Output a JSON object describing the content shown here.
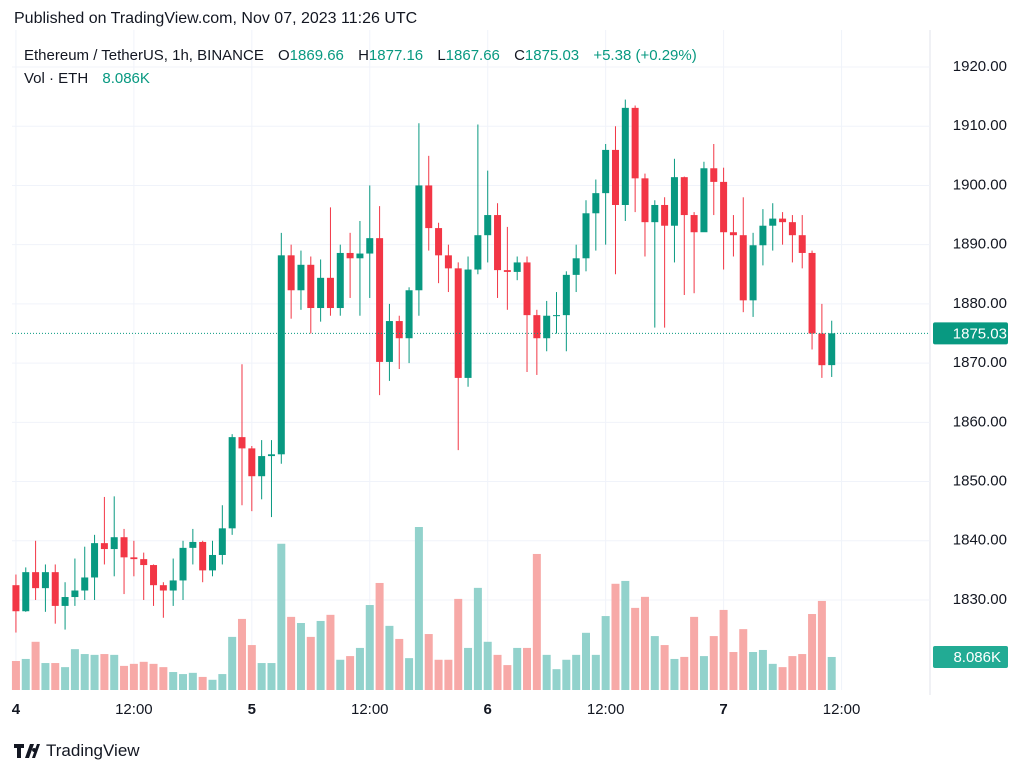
{
  "published": "Published on TradingView.com, Nov 07, 2023 11:26 UTC",
  "brand": "TradingView",
  "chart_data": {
    "type": "candlestick",
    "title": "Ethereum / TetherUS, 1h, BINANCE",
    "legend_keys": [
      "O",
      "H",
      "L",
      "C"
    ],
    "change_label": "+5.38 (+0.29%)",
    "volume_title": "Vol · ETH",
    "last_volume_label": "8.086K",
    "up_color": "#089981",
    "down_color": "#f23645",
    "volume_up_color": "#92d2cc",
    "volume_down_color": "#f7a9a7",
    "grid": true,
    "x": [
      0,
      1,
      2,
      3,
      4,
      5,
      6,
      7,
      8,
      9,
      10,
      11,
      12,
      13,
      14,
      15,
      16,
      17,
      18,
      19,
      20,
      21,
      22,
      23,
      24,
      25,
      26,
      27,
      28,
      29,
      30,
      31,
      32,
      33,
      34,
      35,
      36,
      37,
      38,
      39,
      40,
      41,
      42,
      43,
      44,
      45,
      46,
      47,
      48,
      49,
      50,
      51,
      52,
      53,
      54,
      55,
      56,
      57,
      58,
      59,
      60,
      61,
      62,
      63,
      64,
      65,
      66,
      67,
      68,
      69,
      70,
      71,
      72,
      73,
      74,
      75,
      76,
      77,
      78,
      79,
      80,
      81,
      82,
      83
    ],
    "open": [
      1832.5,
      1828.1,
      1834.7,
      1832,
      1834.7,
      1829,
      1830.5,
      1831.6,
      1833.8,
      1839.6,
      1838.6,
      1840.6,
      1837.2,
      1836.9,
      1835.9,
      1832.5,
      1831.6,
      1833.3,
      1838.8,
      1839.8,
      1835,
      1837.6,
      1842.1,
      1857.5,
      1855.6,
      1850.9,
      1854.3,
      1854.6,
      1888.2,
      1882.3,
      1886.6,
      1879.3,
      1884.4,
      1879.3,
      1888.6,
      1887.7,
      1888.5,
      1891.1,
      1870.2,
      1877.1,
      1874.2,
      1882.3,
      1900,
      1892.8,
      1888.2,
      1886,
      1867.5,
      1885.8,
      1891.6,
      1895,
      1885.7,
      1885.4,
      1887,
      1878.1,
      1874.2,
      1878,
      1878.1,
      1884.9,
      1887.7,
      1895.3,
      1898.7,
      1906,
      1896.7,
      1913.1,
      1901.2,
      1893.8,
      1896.7,
      1893.2,
      1901.4,
      1895,
      1892.1,
      1902.9,
      1900.6,
      1892.1,
      1891.6,
      1880.6,
      1889.9,
      1893.2,
      1894.4,
      1893.8,
      1891.6,
      1888.6,
      1875,
      1869.66
    ],
    "high": [
      1834.3,
      1835.5,
      1840,
      1836,
      1836,
      1833,
      1837,
      1839,
      1841,
      1847.4,
      1847.5,
      1842,
      1840,
      1838,
      1836,
      1833,
      1837,
      1840,
      1842,
      1840,
      1840,
      1846,
      1858,
      1869.8,
      1856,
      1857,
      1857,
      1892,
      1890,
      1889,
      1888,
      1887.5,
      1896.3,
      1890,
      1892,
      1894,
      1900,
      1896.5,
      1880,
      1878,
      1882.8,
      1910.5,
      1905,
      1893.7,
      1890,
      1887,
      1888,
      1910.3,
      1902.5,
      1897,
      1893,
      1888,
      1888,
      1879,
      1880.5,
      1882,
      1885.5,
      1890,
      1897.5,
      1901,
      1907,
      1910,
      1914.5,
      1913.5,
      1902,
      1897.5,
      1898,
      1904.5,
      1901.5,
      1895.5,
      1904,
      1907,
      1903,
      1895,
      1898,
      1892,
      1896,
      1897,
      1895.5,
      1895,
      1895,
      1889,
      1880,
      1877.16
    ],
    "low": [
      1824.5,
      1828,
      1830,
      1828,
      1826,
      1825,
      1829,
      1830,
      1830,
      1836,
      1834,
      1831,
      1834,
      1830,
      1829,
      1827,
      1829,
      1830,
      1836,
      1833,
      1834,
      1836,
      1841,
      1846,
      1845,
      1847,
      1844,
      1853,
      1877.5,
      1879,
      1875,
      1877,
      1878,
      1878,
      1881,
      1878,
      1881,
      1864.6,
      1867,
      1869,
      1870,
      1878,
      1889,
      1883.5,
      1882,
      1855.3,
      1866,
      1885,
      1887,
      1881,
      1879,
      1884,
      1868.5,
      1868,
      1872,
      1875,
      1872,
      1882,
      1885.5,
      1889,
      1890,
      1885,
      1894,
      1895.5,
      1888,
      1876,
      1876,
      1887,
      1881.5,
      1881.8,
      1893,
      1895,
      1885.8,
      1888,
      1878.6,
      1877.8,
      1886.5,
      1889,
      1890,
      1887,
      1886,
      1872.3,
      1867.5,
      1867.66
    ],
    "close": [
      1828.1,
      1834.7,
      1832,
      1834.7,
      1829,
      1830.5,
      1831.6,
      1833.8,
      1839.6,
      1838.6,
      1840.6,
      1837.2,
      1836.9,
      1835.9,
      1832.5,
      1831.6,
      1833.3,
      1838.8,
      1839.8,
      1835,
      1837.6,
      1842.1,
      1857.5,
      1855.6,
      1850.9,
      1854.3,
      1854.6,
      1888.2,
      1882.3,
      1886.6,
      1879.3,
      1884.4,
      1879.3,
      1888.6,
      1887.7,
      1888.5,
      1891.1,
      1870.2,
      1877.1,
      1874.2,
      1882.3,
      1900,
      1892.8,
      1888.2,
      1886,
      1867.5,
      1885.8,
      1891.6,
      1895,
      1885.7,
      1885.4,
      1887,
      1878.1,
      1874.2,
      1878,
      1878.1,
      1884.9,
      1887.7,
      1895.3,
      1898.7,
      1906,
      1896.7,
      1913.1,
      1901.2,
      1893.8,
      1896.7,
      1893.2,
      1901.4,
      1895,
      1892.1,
      1902.9,
      1900.6,
      1892.1,
      1891.6,
      1880.6,
      1889.9,
      1893.2,
      1894.4,
      1893.8,
      1891.6,
      1888.6,
      1875,
      1869.65,
      1875.03
    ],
    "volume": [
      7100,
      7600,
      11800,
      6600,
      6600,
      5600,
      10000,
      8800,
      8600,
      8800,
      8600,
      5900,
      6400,
      6900,
      6400,
      5600,
      4400,
      3900,
      4200,
      3200,
      2500,
      3900,
      13000,
      17400,
      11000,
      6600,
      6600,
      35800,
      17900,
      16400,
      13000,
      16900,
      18400,
      7400,
      8300,
      10300,
      20800,
      26200,
      15700,
      12500,
      7800,
      39900,
      13700,
      7400,
      7400,
      22300,
      10300,
      25000,
      11800,
      8600,
      6100,
      10300,
      10300,
      33300,
      8600,
      5100,
      7400,
      8600,
      14000,
      8600,
      18100,
      26000,
      26700,
      20100,
      22800,
      13200,
      11000,
      7600,
      8100,
      17900,
      8300,
      13200,
      19600,
      9300,
      14900,
      9300,
      9800,
      6400,
      5600,
      8300,
      8800,
      18600,
      21800,
      8086
    ],
    "xlim": [
      -0.4,
      93
    ],
    "xticks": [
      {
        "value": 0,
        "label": "4"
      },
      {
        "value": 12,
        "label": "12:00"
      },
      {
        "value": 24,
        "label": "5"
      },
      {
        "value": 36,
        "label": "12:00"
      },
      {
        "value": 48,
        "label": "6"
      },
      {
        "value": 60,
        "label": "12:00"
      },
      {
        "value": 72,
        "label": "7"
      },
      {
        "value": 84,
        "label": "12:00"
      }
    ],
    "ylim": [
      1814.8,
      1924.56
    ],
    "yticks": [
      {
        "value": 1830,
        "label": "1830.00"
      },
      {
        "value": 1840,
        "label": "1840.00"
      },
      {
        "value": 1850,
        "label": "1850.00"
      },
      {
        "value": 1860,
        "label": "1860.00"
      },
      {
        "value": 1870,
        "label": "1870.00"
      },
      {
        "value": 1880,
        "label": "1880.00"
      },
      {
        "value": 1890,
        "label": "1890.00"
      },
      {
        "value": 1900,
        "label": "1900.00"
      },
      {
        "value": 1910,
        "label": "1910.00"
      },
      {
        "value": 1920,
        "label": "1920.00"
      }
    ]
  }
}
